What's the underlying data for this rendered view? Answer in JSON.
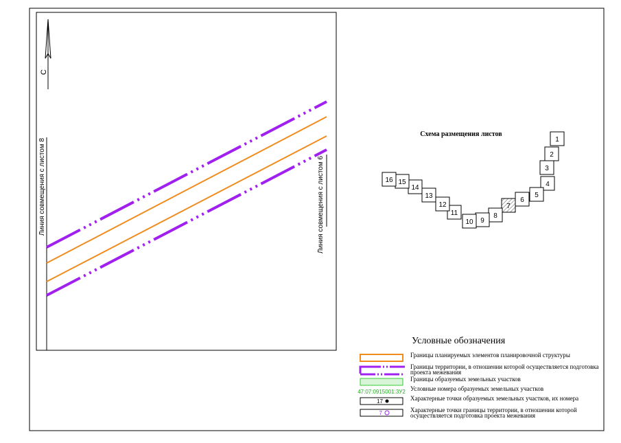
{
  "map": {
    "north": "С",
    "joins": {
      "left": "Линия совмещения с листом 8",
      "right": "Линия совмещения с листом 6"
    },
    "scheme": {
      "title": "Схема размещения листов",
      "sheets": [
        "1",
        "2",
        "3",
        "4",
        "5",
        "6",
        "7",
        "8",
        "9",
        "10",
        "11",
        "12",
        "13",
        "14",
        "15",
        "16"
      ]
    },
    "legend": {
      "title": "Условные обозначения",
      "items": [
        {
          "text": "Границы планируемых элементов планировочной структуры"
        },
        {
          "text": "Границы территории, в отношении которой осуществляется подготовка проекта межевания"
        },
        {
          "text": "Границы образуемых земельных участков"
        },
        {
          "sample": "47:07:0915001:3У2",
          "text": "Условные номера образуемых земельных участков"
        },
        {
          "sample": "17",
          "text": "Характерные точки образуемых земельных участков, их номера"
        },
        {
          "sample": "7",
          "text": "Характерные точки границы территории, в отношении которой осуществляется подготовка проекта межевания"
        }
      ]
    }
  }
}
